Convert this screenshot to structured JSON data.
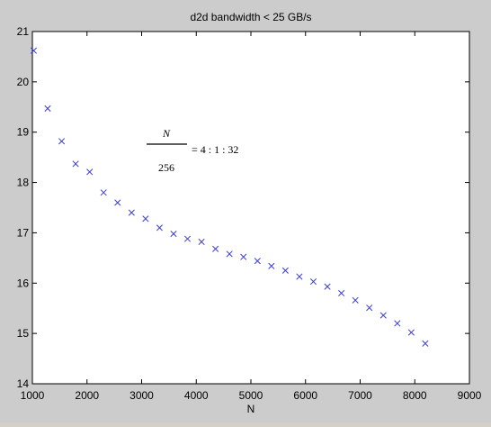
{
  "chart_data": {
    "type": "scatter",
    "title": "d2d bandwidth < 25 GB/s",
    "xlabel": "N",
    "ylabel": "",
    "xlim": [
      1000,
      9000
    ],
    "ylim": [
      14,
      21
    ],
    "xticks": [
      "1000",
      "2000",
      "3000",
      "4000",
      "5000",
      "6000",
      "7000",
      "8000",
      "9000"
    ],
    "yticks": [
      "14",
      "15",
      "16",
      "17",
      "18",
      "19",
      "20",
      "21"
    ],
    "grid": false,
    "marker": "x",
    "marker_color": "#3b3bd8",
    "x": [
      1024,
      1280,
      1536,
      1792,
      2048,
      2304,
      2560,
      2816,
      3072,
      3328,
      3584,
      3840,
      4096,
      4352,
      4608,
      4864,
      5120,
      5376,
      5632,
      5888,
      6144,
      6400,
      6656,
      6912,
      7168,
      7424,
      7680,
      7936,
      8192
    ],
    "y": [
      20.62,
      19.47,
      18.82,
      18.37,
      18.21,
      17.8,
      17.6,
      17.4,
      17.28,
      17.1,
      16.98,
      16.88,
      16.82,
      16.68,
      16.58,
      16.52,
      16.44,
      16.34,
      16.25,
      16.13,
      16.03,
      15.93,
      15.8,
      15.66,
      15.51,
      15.36,
      15.2,
      15.02,
      14.8
    ],
    "annotation": {
      "numerator": "N",
      "denominator": "256",
      "rhs": "= 4 : 1 : 32"
    }
  }
}
